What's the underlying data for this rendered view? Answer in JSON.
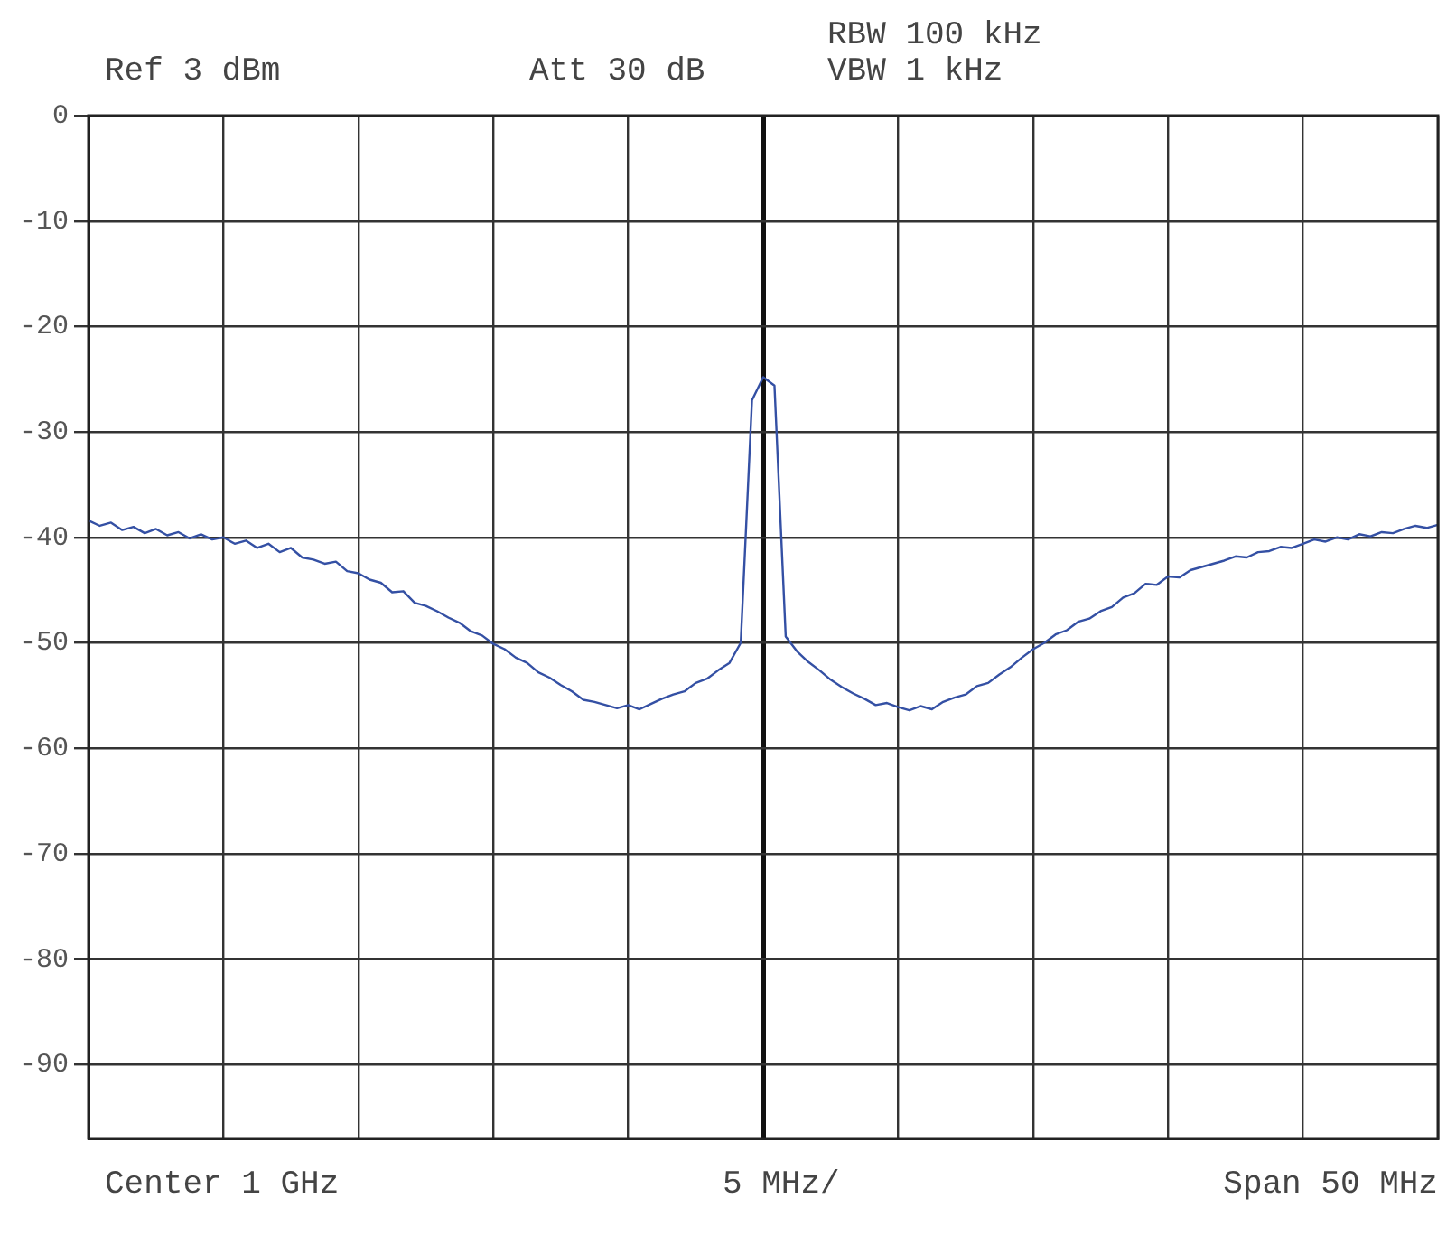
{
  "chart_data": {
    "type": "line",
    "annotations": [
      "RBW 100 kHz",
      "Ref 3 dBm",
      "Att 30 dB",
      "VBW 1 kHz",
      "Center 1 GHz",
      "5 MHz/",
      "Span 50 MHz"
    ],
    "categories": [
      null,
      null,
      null,
      null,
      null,
      null,
      null,
      null,
      null,
      null,
      null,
      null,
      null,
      null,
      null,
      null,
      null,
      null,
      null,
      null,
      null,
      null,
      null,
      null,
      null,
      null,
      null,
      null,
      null,
      null,
      null,
      null,
      null,
      null,
      null,
      null,
      null,
      null,
      null,
      null,
      null,
      null,
      null,
      null,
      null,
      null,
      null,
      null,
      null,
      null,
      null,
      null,
      null,
      null,
      null,
      null,
      null,
      null,
      null,
      null,
      null,
      null,
      null,
      null,
      null,
      null,
      null,
      null,
      null,
      null,
      null,
      null,
      null,
      null,
      null,
      null,
      null,
      null,
      null,
      null,
      null,
      null,
      null,
      null,
      null,
      null,
      null,
      null,
      null,
      null,
      null,
      null,
      null,
      null,
      null,
      null,
      null,
      null,
      null,
      null,
      null,
      null,
      null,
      null,
      null,
      null,
      null,
      null,
      null,
      null,
      null,
      null,
      null,
      null,
      null,
      null,
      null,
      null,
      null,
      null,
      null
    ],
    "series": [
      {
        "color": "#3450a4",
        "values": [
          -38.4,
          -38.9,
          -38.6,
          -39.3,
          -39.0,
          -39.6,
          -39.2,
          -39.8,
          -39.5,
          -40.1,
          -39.7,
          -40.2,
          -40.0,
          -40.6,
          -40.3,
          -41.0,
          -40.6,
          -41.4,
          -41.0,
          -41.9,
          -42.1,
          -42.5,
          -42.3,
          -43.2,
          -43.4,
          -44.0,
          -44.3,
          -45.2,
          -45.1,
          -46.2,
          -46.5,
          -47.0,
          -47.6,
          -48.1,
          -48.9,
          -49.3,
          -50.1,
          -50.6,
          -51.4,
          -51.9,
          -52.8,
          -53.3,
          -54.0,
          -54.6,
          -55.4,
          -55.6,
          -55.9,
          -56.2,
          -55.9,
          -56.3,
          -55.8,
          -55.3,
          -54.9,
          -54.6,
          -53.8,
          -53.4,
          -52.6,
          -51.9,
          -50.0,
          -27.0,
          -24.8,
          -25.6,
          -49.4,
          -50.8,
          -51.8,
          -52.6,
          -53.5,
          -54.2,
          -54.8,
          -55.3,
          -55.9,
          -55.7,
          -56.1,
          -56.4,
          -56.0,
          -56.3,
          -55.6,
          -55.2,
          -54.9,
          -54.1,
          -53.8,
          -53.0,
          -52.3,
          -51.4,
          -50.6,
          -50.0,
          -49.2,
          -48.8,
          -48.0,
          -47.7,
          -47.0,
          -46.6,
          -45.7,
          -45.3,
          -44.4,
          -44.5,
          -43.7,
          -43.8,
          -43.1,
          -42.8,
          -42.5,
          -42.2,
          -41.8,
          -41.9,
          -41.4,
          -41.3,
          -40.9,
          -41.0,
          -40.6,
          -40.2,
          -40.4,
          -40.0,
          -40.2,
          -39.7,
          -39.9,
          -39.5,
          -39.6,
          -39.2,
          -38.9,
          -39.1,
          -38.8
        ]
      }
    ],
    "ylim": [
      -97,
      0
    ],
    "yticks": [
      0,
      -10,
      -20,
      -30,
      -40,
      -50,
      -60,
      -70,
      -80,
      -90
    ],
    "grid": true,
    "tick_labels": "y"
  }
}
